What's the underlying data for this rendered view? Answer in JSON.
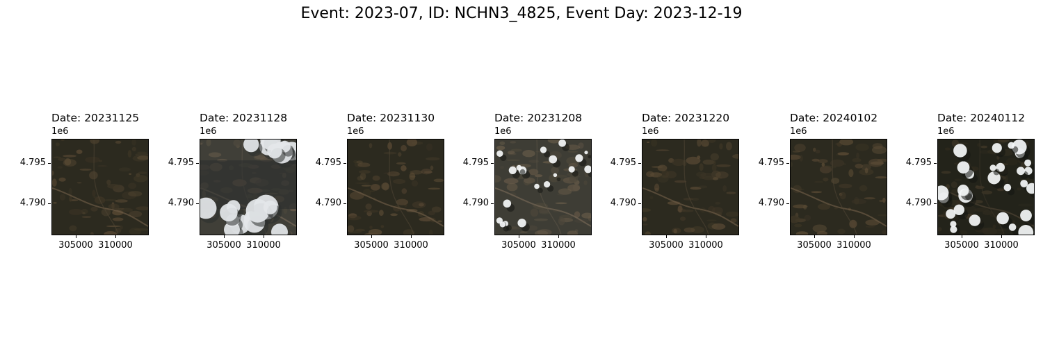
{
  "figure": {
    "suptitle": "Event: 2023-07, ID: NCHN3_4825, Event Day: 2023-12-19"
  },
  "axes": {
    "offset_label": "1e6",
    "y_ticks": [
      "4.795",
      "4.790"
    ],
    "x_ticks": [
      "305000",
      "310000"
    ]
  },
  "panels": [
    {
      "title": "Date: 20231125",
      "scene": "clear"
    },
    {
      "title": "Date: 20231128",
      "scene": "cloudy-heavy"
    },
    {
      "title": "Date: 20231130",
      "scene": "clear"
    },
    {
      "title": "Date: 20231208",
      "scene": "hazy-partial"
    },
    {
      "title": "Date: 20231220",
      "scene": "clear"
    },
    {
      "title": "Date: 20240102",
      "scene": "clear"
    },
    {
      "title": "Date: 20240112",
      "scene": "cloudy-scattered"
    }
  ],
  "colors": {
    "terrain_dark": "#2c2a1f",
    "terrain_mid": "#3e3626",
    "terrain_brown": "#5a4a34",
    "cloud": "#f4f6f8",
    "shadow": "#141612"
  }
}
